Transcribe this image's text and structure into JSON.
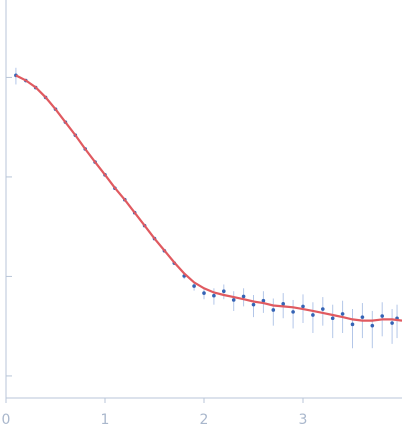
{
  "chart_data": {
    "type": "scatter",
    "ylog": true,
    "xlim": [
      0,
      4.0
    ],
    "xticks": [
      0,
      1,
      2,
      3
    ],
    "ylim": [
      0.0006,
      6
    ],
    "yticks": [
      1,
      0.1,
      0.01,
      0.001
    ],
    "series": [
      {
        "kind": "points",
        "color": "#3563b5",
        "error_color": "#b3c6e8",
        "x": [
          0.1,
          0.2,
          0.3,
          0.4,
          0.5,
          0.6,
          0.7,
          0.8,
          0.9,
          1.0,
          1.1,
          1.2,
          1.3,
          1.4,
          1.5,
          1.6,
          1.7,
          1.8,
          1.9,
          2.0,
          2.1,
          2.2,
          2.3,
          2.4,
          2.5,
          2.6,
          2.7,
          2.8,
          2.9,
          3.0,
          3.1,
          3.2,
          3.3,
          3.4,
          3.5,
          3.6,
          3.7,
          3.8,
          3.9,
          3.95
        ],
        "values": [
          1.05,
          0.93,
          0.79,
          0.63,
          0.48,
          0.355,
          0.263,
          0.191,
          0.141,
          0.105,
          0.077,
          0.059,
          0.0437,
          0.0324,
          0.024,
          0.0181,
          0.0136,
          0.0101,
          0.008,
          0.0068,
          0.0064,
          0.0071,
          0.0058,
          0.0063,
          0.0052,
          0.0057,
          0.0046,
          0.0053,
          0.0044,
          0.005,
          0.0041,
          0.0047,
          0.0038,
          0.0042,
          0.0033,
          0.0039,
          0.0032,
          0.004,
          0.0034,
          0.0038
        ],
        "errors": [
          0.2,
          0.02,
          0.015,
          0.012,
          0.01,
          0.007,
          0.005,
          0.004,
          0.003,
          0.002,
          0.0015,
          0.0012,
          0.0009,
          0.0008,
          0.0006,
          0.0006,
          0.0006,
          0.0007,
          0.0008,
          0.0009,
          0.0012,
          0.0012,
          0.0013,
          0.0013,
          0.0013,
          0.0014,
          0.0014,
          0.0015,
          0.0014,
          0.0016,
          0.0014,
          0.0015,
          0.0014,
          0.0015,
          0.0014,
          0.0015,
          0.0013,
          0.0015,
          0.0013,
          0.0014
        ]
      },
      {
        "kind": "line",
        "color": "#e05a60",
        "x": [
          0.1,
          0.2,
          0.3,
          0.4,
          0.5,
          0.6,
          0.7,
          0.8,
          0.9,
          1.0,
          1.1,
          1.2,
          1.3,
          1.4,
          1.5,
          1.6,
          1.7,
          1.8,
          1.9,
          2.0,
          2.1,
          2.2,
          2.3,
          2.4,
          2.5,
          2.6,
          2.7,
          2.8,
          2.9,
          3.0,
          3.1,
          3.2,
          3.3,
          3.4,
          3.5,
          3.6,
          3.7,
          3.8,
          3.9,
          4.0
        ],
        "values": [
          1.047,
          0.933,
          0.794,
          0.631,
          0.479,
          0.355,
          0.263,
          0.191,
          0.141,
          0.105,
          0.0776,
          0.0589,
          0.0437,
          0.0324,
          0.024,
          0.0182,
          0.0138,
          0.0107,
          0.0087,
          0.0076,
          0.0069,
          0.0065,
          0.0062,
          0.0059,
          0.0056,
          0.0054,
          0.0051,
          0.005,
          0.0049,
          0.0047,
          0.0045,
          0.0043,
          0.0041,
          0.0039,
          0.0037,
          0.0036,
          0.0036,
          0.0037,
          0.0037,
          0.0036
        ]
      }
    ]
  }
}
